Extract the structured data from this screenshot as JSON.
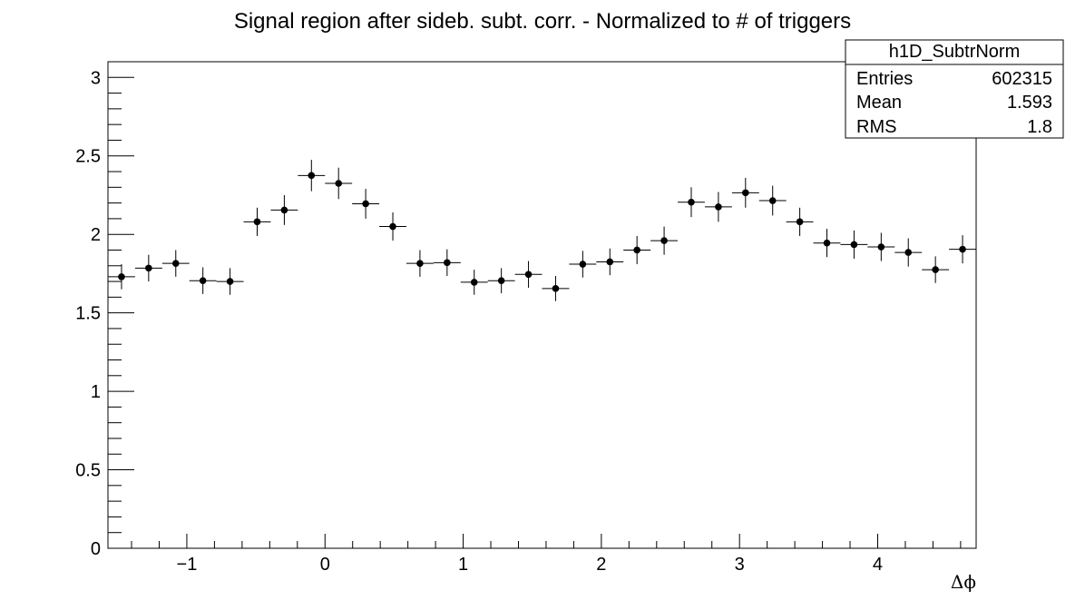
{
  "chart_data": {
    "type": "scatter",
    "title": "Signal region after sideb. subt. corr. - Normalized to # of triggers",
    "xlabel": "Δϕ",
    "ylabel": "",
    "xlim": [
      -1.5708,
      4.7124
    ],
    "ylim": [
      0,
      3.1
    ],
    "x_ticks": [
      -1,
      0,
      1,
      2,
      3,
      4
    ],
    "x_tick_labels": [
      "−1",
      "0",
      "1",
      "2",
      "3",
      "4"
    ],
    "y_ticks": [
      0,
      0.5,
      1,
      1.5,
      2,
      2.5,
      3
    ],
    "y_tick_labels": [
      "0",
      "0.5",
      "1",
      "1.5",
      "2",
      "2.5",
      "3"
    ],
    "grid": false,
    "bin_width": 0.19635,
    "series": [
      {
        "x": [
          -1.4726,
          -1.2763,
          -1.0799,
          -0.8836,
          -0.6872,
          -0.4909,
          -0.2945,
          -0.0982,
          0.0982,
          0.2945,
          0.4909,
          0.6872,
          0.8836,
          1.0799,
          1.2763,
          1.4726,
          1.669,
          1.8653,
          2.0617,
          2.258,
          2.4544,
          2.6507,
          2.8471,
          3.0434,
          3.2398,
          3.4361,
          3.6325,
          3.8288,
          4.0252,
          4.2215,
          4.4179,
          4.6142
        ],
        "values": [
          1.73,
          1.785,
          1.815,
          1.705,
          1.7,
          2.08,
          2.155,
          2.375,
          2.325,
          2.195,
          2.05,
          1.815,
          1.82,
          1.695,
          1.705,
          1.745,
          1.655,
          1.81,
          1.825,
          1.9,
          1.96,
          2.205,
          2.175,
          2.265,
          2.215,
          2.08,
          1.945,
          1.935,
          1.92,
          1.885,
          1.775,
          1.905
        ],
        "errors": [
          0.08,
          0.085,
          0.085,
          0.085,
          0.085,
          0.09,
          0.095,
          0.1,
          0.1,
          0.095,
          0.09,
          0.085,
          0.085,
          0.08,
          0.08,
          0.085,
          0.08,
          0.085,
          0.085,
          0.09,
          0.09,
          0.095,
          0.095,
          0.095,
          0.095,
          0.09,
          0.09,
          0.09,
          0.09,
          0.09,
          0.085,
          0.09
        ]
      }
    ]
  },
  "stats_box": {
    "name": "h1D_SubtrNorm",
    "rows": [
      {
        "label": "Entries",
        "value": "602315"
      },
      {
        "label": "Mean",
        "value": "1.593"
      },
      {
        "label": "RMS",
        "value": "1.8"
      }
    ]
  }
}
